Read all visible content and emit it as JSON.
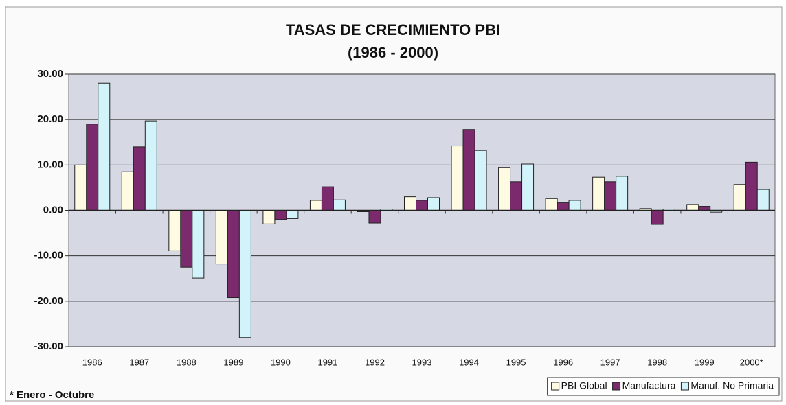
{
  "chart_data": {
    "type": "bar",
    "title": "TASAS DE CRECIMIENTO PBI",
    "subtitle": "(1986 - 2000)",
    "annotation": "* Enero - Octubre",
    "categories": [
      "1986",
      "1987",
      "1988",
      "1989",
      "1990",
      "1991",
      "1992",
      "1993",
      "1994",
      "1995",
      "1996",
      "1997",
      "1998",
      "1999",
      "2000*"
    ],
    "series": [
      {
        "name": "PBI Global",
        "color": "#fffbe3",
        "values": [
          10.0,
          8.5,
          -8.9,
          -11.8,
          -3.0,
          2.2,
          -0.3,
          3.0,
          14.2,
          9.4,
          2.6,
          7.3,
          0.4,
          1.3,
          5.7
        ]
      },
      {
        "name": "Manufactura",
        "color": "#7b2a6e",
        "values": [
          19.0,
          14.0,
          -12.5,
          -19.2,
          -2.0,
          5.2,
          -2.8,
          2.2,
          17.8,
          6.3,
          1.8,
          6.3,
          -3.1,
          0.9,
          10.6
        ]
      },
      {
        "name": "Manuf. No Primaria",
        "color": "#d3f3fa",
        "values": [
          28.0,
          19.7,
          -14.9,
          -28.0,
          -1.8,
          2.3,
          0.3,
          2.8,
          13.2,
          10.2,
          2.2,
          7.5,
          0.3,
          -0.4,
          4.6
        ]
      }
    ],
    "ylim": [
      -30,
      30
    ],
    "yticks": [
      {
        "value": -30,
        "label": "-30.00"
      },
      {
        "value": -20,
        "label": "-20.00"
      },
      {
        "value": -10,
        "label": "-10.00"
      },
      {
        "value": 0,
        "label": "0.00"
      },
      {
        "value": 10,
        "label": "10.00"
      },
      {
        "value": 20,
        "label": "20.00"
      },
      {
        "value": 30,
        "label": "30.00"
      }
    ],
    "grid": true,
    "legend": "bottom-right"
  }
}
